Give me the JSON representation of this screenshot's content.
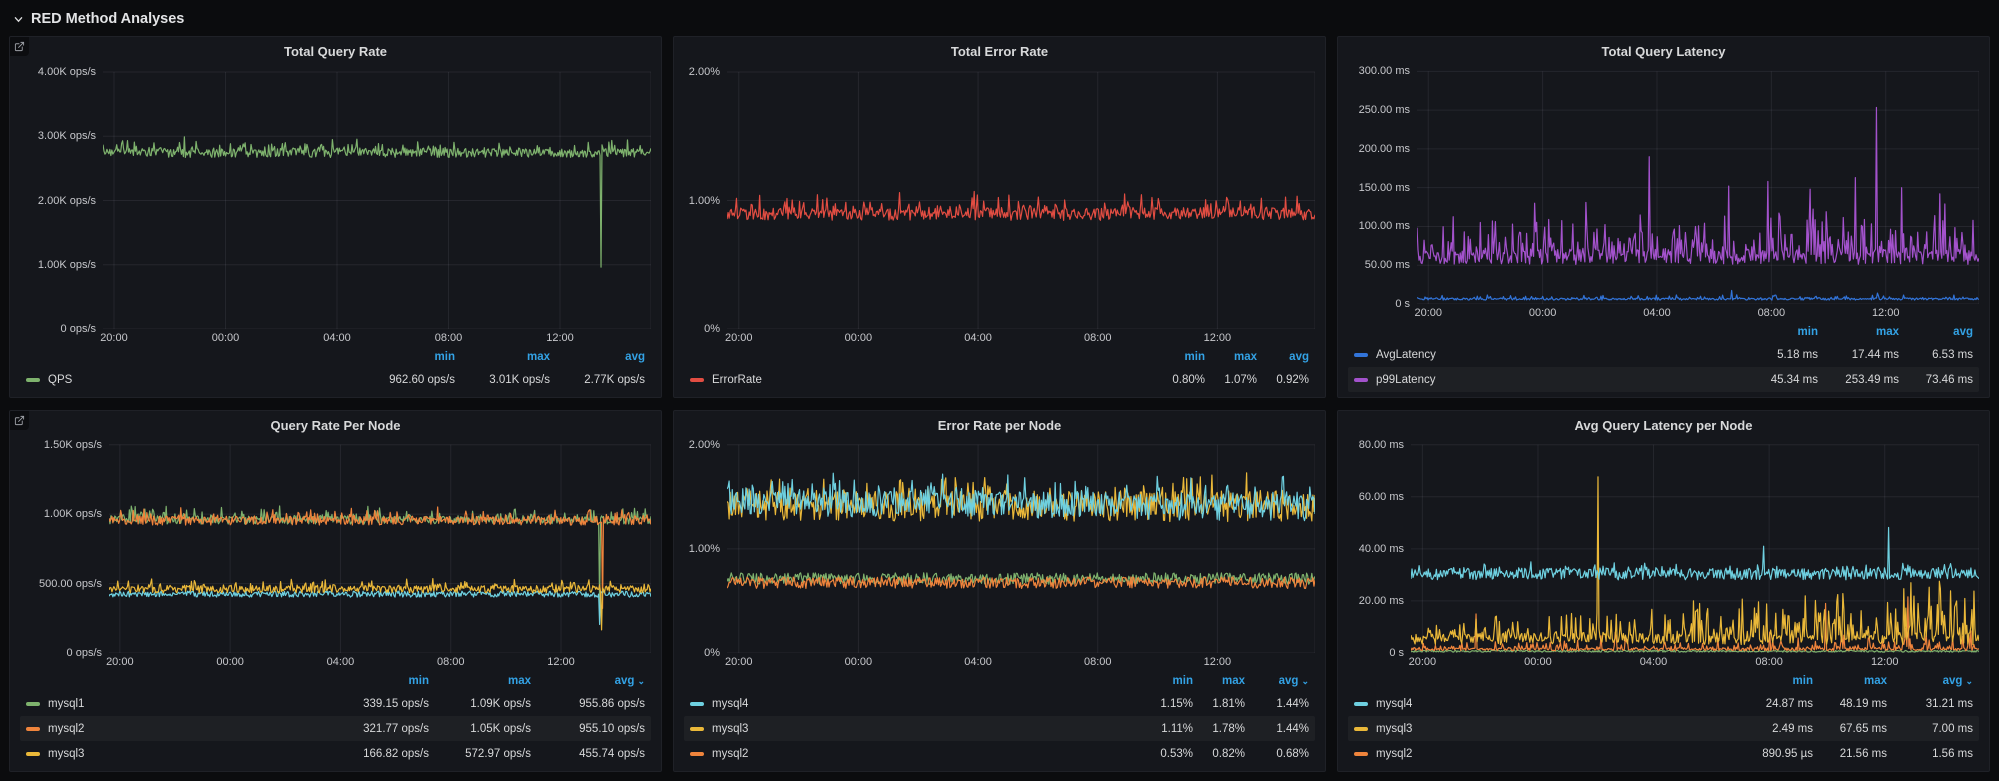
{
  "page": {
    "title": "RED Method Analyses"
  },
  "colors": {
    "page_bg": "#0b0c0e",
    "panel_bg": "#15171c",
    "accent_blue": "#33a2e5",
    "green": "#7EB26D",
    "orange": "#EF843C",
    "yellow": "#EAB839",
    "cyan": "#6ED0E0",
    "red": "#E24D42",
    "blue": "#3274D9",
    "purple": "#A352CC"
  },
  "legend_headers": {
    "min": "min",
    "max": "max",
    "avg": "avg"
  },
  "time_axis": {
    "labels": [
      "20:00",
      "00:00",
      "04:00",
      "08:00",
      "12:00"
    ]
  },
  "panels": [
    {
      "title": "Total Query Rate",
      "type": "line",
      "corner_link": true,
      "sorted": false,
      "y_max": 4000,
      "y_ticks": [
        "4.00K ops/s",
        "3.00K ops/s",
        "2.00K ops/s",
        "1.00K ops/s",
        "0 ops/s"
      ],
      "legend": [
        {
          "name": "QPS",
          "color": "#7EB26D",
          "min": "962.60 ops/s",
          "max": "3.01K ops/s",
          "avg": "2.77K ops/s"
        }
      ],
      "series": [
        {
          "name": "QPS",
          "color": "#7EB26D",
          "base": 2740,
          "jitter": 70,
          "up_amp": 190,
          "up_pow": 7,
          "spikes": [
            {
              "x": 0.908,
              "y": 962.6
            }
          ]
        }
      ]
    },
    {
      "title": "Total Error Rate",
      "type": "line",
      "corner_link": false,
      "sorted": false,
      "y_max": 2,
      "y_ticks": [
        "2.00%",
        "1.00%",
        "0%"
      ],
      "legend": [
        {
          "name": "ErrorRate",
          "color": "#E24D42",
          "min": "0.80%",
          "max": "1.07%",
          "avg": "0.92%"
        }
      ],
      "series": [
        {
          "name": "ErrorRate",
          "color": "#E24D42",
          "base": 0.895,
          "jitter": 0.05,
          "clamp": 0.8,
          "up_amp": 0.12,
          "up_pow": 6,
          "spikes": [
            {
              "x": 0.42,
              "y": 1.07
            },
            {
              "x": 0.055,
              "y": 1.04
            }
          ]
        }
      ]
    },
    {
      "title": "Total Query Latency",
      "type": "line",
      "corner_link": false,
      "sorted": false,
      "y_max": 300,
      "y_ticks": [
        "300.00 ms",
        "250.00 ms",
        "200.00 ms",
        "150.00 ms",
        "100.00 ms",
        "50.00 ms",
        "0 s"
      ],
      "legend": [
        {
          "name": "AvgLatency",
          "color": "#3274D9",
          "min": "5.18 ms",
          "max": "17.44 ms",
          "avg": "6.53 ms"
        },
        {
          "name": "p99Latency",
          "color": "#A352CC",
          "min": "45.34 ms",
          "max": "253.49 ms",
          "avg": "73.46 ms"
        }
      ],
      "series": [
        {
          "name": "AvgLatency",
          "color": "#3274D9",
          "base": 6.3,
          "jitter": 1.3,
          "clamp": 5.0,
          "up_amp": 5,
          "up_pow": 8,
          "spikes": [
            {
              "x": 0.56,
              "y": 17.44
            },
            {
              "x": 0.82,
              "y": 14
            }
          ]
        },
        {
          "name": "p99Latency",
          "color": "#A352CC",
          "base": 60,
          "jitter": 9,
          "clamp": 45.3,
          "up_amp": 42,
          "up_pow": 5,
          "up_trend": 1.7,
          "spikes": [
            {
              "x": 0.135,
              "y": 107
            },
            {
              "x": 0.21,
              "y": 130
            },
            {
              "x": 0.3,
              "y": 131
            },
            {
              "x": 0.413,
              "y": 190
            },
            {
              "x": 0.555,
              "y": 152
            },
            {
              "x": 0.625,
              "y": 158
            },
            {
              "x": 0.7,
              "y": 148
            },
            {
              "x": 0.78,
              "y": 163
            },
            {
              "x": 0.818,
              "y": 253.49
            },
            {
              "x": 0.862,
              "y": 150
            },
            {
              "x": 0.93,
              "y": 142
            }
          ]
        }
      ]
    },
    {
      "title": "Query Rate Per Node",
      "type": "line",
      "corner_link": true,
      "sorted": true,
      "y_max": 1500,
      "y_ticks": [
        "1.50K ops/s",
        "1.00K ops/s",
        "500.00 ops/s",
        "0 ops/s"
      ],
      "legend": [
        {
          "name": "mysql1",
          "color": "#7EB26D",
          "min": "339.15 ops/s",
          "max": "1.09K ops/s",
          "avg": "955.86 ops/s"
        },
        {
          "name": "mysql2",
          "color": "#EF843C",
          "min": "321.77 ops/s",
          "max": "1.05K ops/s",
          "avg": "955.10 ops/s"
        },
        {
          "name": "mysql3",
          "color": "#EAB839",
          "min": "166.82 ops/s",
          "max": "572.97 ops/s",
          "avg": "455.74 ops/s"
        }
      ],
      "series": [
        {
          "name": "mysql1",
          "color": "#7EB26D",
          "base": 958,
          "jitter": 30,
          "up_amp": 80,
          "up_pow": 7,
          "spikes": [
            {
              "x": 0.906,
              "y": 339.15
            }
          ]
        },
        {
          "name": "mysql2",
          "color": "#EF843C",
          "base": 953,
          "jitter": 32,
          "up_amp": 70,
          "up_pow": 7,
          "spikes": [
            {
              "x": 0.91,
              "y": 321.77
            }
          ]
        },
        {
          "name": "mysql4",
          "color": "#6ED0E0",
          "base": 424,
          "jitter": 22,
          "spikes": [
            {
              "x": 0.906,
              "y": 205
            }
          ]
        },
        {
          "name": "mysql3",
          "color": "#EAB839",
          "base": 458,
          "jitter": 26,
          "up_amp": 60,
          "up_pow": 7,
          "spikes": [
            {
              "x": 0.909,
              "y": 166.82
            }
          ]
        }
      ]
    },
    {
      "title": "Error Rate per Node",
      "type": "line",
      "corner_link": false,
      "sorted": true,
      "y_max": 2,
      "y_ticks": [
        "2.00%",
        "1.00%",
        "0%"
      ],
      "legend": [
        {
          "name": "mysql4",
          "color": "#6ED0E0",
          "min": "1.15%",
          "max": "1.81%",
          "avg": "1.44%"
        },
        {
          "name": "mysql3",
          "color": "#EAB839",
          "min": "1.11%",
          "max": "1.78%",
          "avg": "1.44%"
        },
        {
          "name": "mysql2",
          "color": "#EF843C",
          "min": "0.53%",
          "max": "0.82%",
          "avg": "0.68%"
        }
      ],
      "series": [
        {
          "name": "mysql1",
          "color": "#7EB26D",
          "base": 0.715,
          "jitter": 0.055
        },
        {
          "name": "mysql2",
          "color": "#EF843C",
          "base": 0.675,
          "jitter": 0.055,
          "clamp": 0.53
        },
        {
          "name": "mysql3",
          "color": "#EAB839",
          "base": 1.41,
          "jitter": 0.15,
          "clamp": 1.11,
          "up_amp": 0.2,
          "up_pow": 6
        },
        {
          "name": "mysql4",
          "color": "#6ED0E0",
          "base": 1.45,
          "jitter": 0.13,
          "clamp": 1.15,
          "trend": 0.96,
          "up_amp": 0.2,
          "up_pow": 6
        }
      ]
    },
    {
      "title": "Avg Query Latency per Node",
      "type": "line",
      "corner_link": false,
      "sorted": true,
      "y_max": 80,
      "y_ticks": [
        "80.00 ms",
        "60.00 ms",
        "40.00 ms",
        "20.00 ms",
        "0 s"
      ],
      "legend": [
        {
          "name": "mysql4",
          "color": "#6ED0E0",
          "min": "24.87 ms",
          "max": "48.19 ms",
          "avg": "31.21 ms"
        },
        {
          "name": "mysql3",
          "color": "#EAB839",
          "min": "2.49 ms",
          "max": "67.65 ms",
          "avg": "7.00 ms"
        },
        {
          "name": "mysql2",
          "color": "#EF843C",
          "min": "890.95 µs",
          "max": "21.56 ms",
          "avg": "1.56 ms"
        }
      ],
      "series": [
        {
          "name": "mysql1",
          "color": "#7EB26D",
          "base": 0.7,
          "jitter": 0.35,
          "clamp": 0.2
        },
        {
          "name": "mysql2",
          "color": "#EF843C",
          "base": 1.4,
          "jitter": 0.55,
          "clamp": 0.85,
          "up_amp": 3,
          "up_pow": 7,
          "up_trend": 3,
          "spikes": [
            {
              "x": 0.115,
              "y": 15
            },
            {
              "x": 0.36,
              "y": 8
            },
            {
              "x": 0.73,
              "y": 19
            },
            {
              "x": 0.875,
              "y": 21.56
            }
          ]
        },
        {
          "name": "mysql3",
          "color": "#EAB839",
          "base": 5.2,
          "jitter": 2,
          "clamp": 2.5,
          "up_amp": 5,
          "up_pow": 4,
          "up_trend": 4.5,
          "spikes": [
            {
              "x": 0.115,
              "y": 13
            },
            {
              "x": 0.33,
              "y": 67.65
            },
            {
              "x": 0.52,
              "y": 15
            },
            {
              "x": 0.88,
              "y": 27
            },
            {
              "x": 0.935,
              "y": 16
            }
          ]
        },
        {
          "name": "mysql4",
          "color": "#6ED0E0",
          "base": 30.3,
          "jitter": 2.2,
          "clamp": 24.9,
          "up_amp": 3,
          "up_pow": 6,
          "spikes": [
            {
              "x": 0.62,
              "y": 41
            },
            {
              "x": 0.84,
              "y": 48.19
            }
          ]
        }
      ]
    }
  ]
}
